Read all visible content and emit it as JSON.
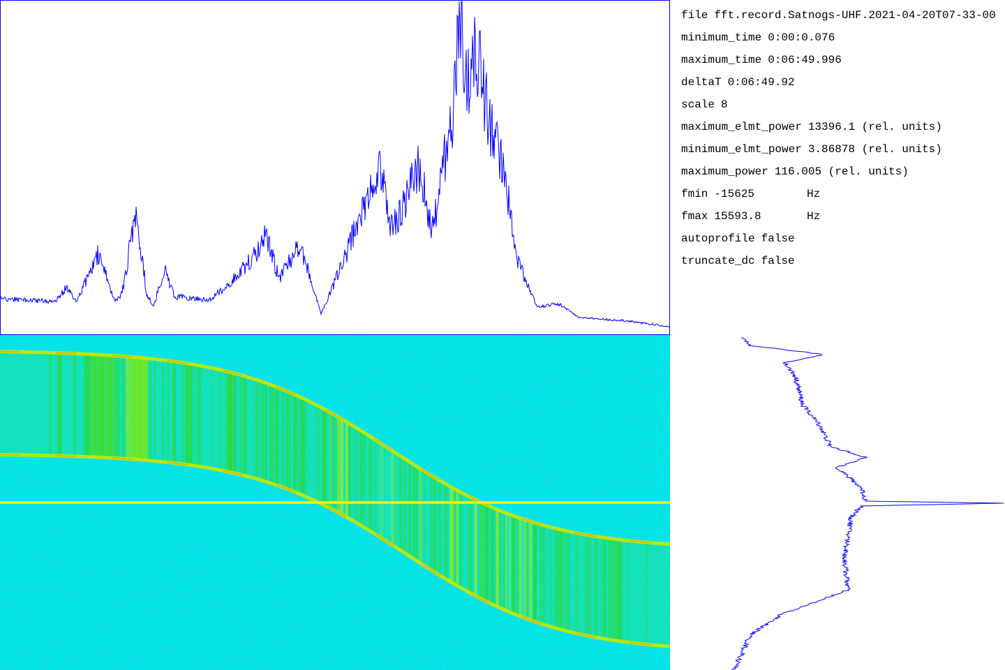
{
  "info": [
    {
      "key": "file",
      "value": "fft.record.Satnogs-UHF.2021-04-20T07-33-00"
    },
    {
      "key": "minimum_time",
      "value": "0:00:0.076"
    },
    {
      "key": "maximum_time",
      "value": "0:06:49.996"
    },
    {
      "key": "deltaT",
      "value": "0:06:49.92"
    },
    {
      "key": "scale",
      "value": "8"
    },
    {
      "key": "maximum_elmt_power",
      "value": "13396.1 (rel. units)"
    },
    {
      "key": "minimum_elmt_power",
      "value": "3.86878 (rel. units)"
    },
    {
      "key": "maximum_power",
      "value": "116.005 (rel. units)"
    },
    {
      "key": "fmin",
      "value": "-15625",
      "unit": "Hz"
    },
    {
      "key": "fmax",
      "value": "15593.8",
      "unit": "Hz"
    },
    {
      "key": "autoprofile",
      "value": "false"
    },
    {
      "key": "truncate_dc",
      "value": "false"
    }
  ]
}
